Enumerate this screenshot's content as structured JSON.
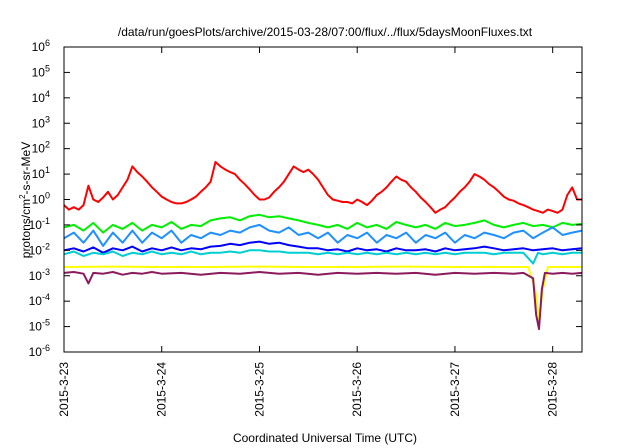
{
  "chart_data": {
    "type": "line",
    "title": "/data/run/goesPlots/archive/2015-03-28/07:00/flux/../flux/5daysMoonFluxes.txt",
    "xlabel": "Coordinated Universal Time (UTC)",
    "ylabel_main": "protons/cm",
    "ylabel_exp": "2",
    "ylabel_rest": "-s-sr-MeV",
    "yscale": "log",
    "ylim": [
      1e-06,
      1000000.0
    ],
    "xlim": [
      0,
      5.3
    ],
    "grid": false,
    "legend": "none",
    "x_tick_labels": [
      "2015-3-23",
      "2015-3-24",
      "2015-3-25",
      "2015-3-26",
      "2015-3-27",
      "2015-3-28"
    ],
    "y_tick_exponents": [
      "-6",
      "-5",
      "-4",
      "-3",
      "-2",
      "-1",
      "0",
      "1",
      "2",
      "3",
      "4",
      "5",
      "6"
    ],
    "series": [
      {
        "color": "#ff0000",
        "x": [
          0,
          0.05,
          0.1,
          0.15,
          0.2,
          0.25,
          0.3,
          0.35,
          0.4,
          0.45,
          0.5,
          0.55,
          0.6,
          0.65,
          0.7,
          0.75,
          0.8,
          0.85,
          0.9,
          0.95,
          1.0,
          1.05,
          1.1,
          1.15,
          1.2,
          1.25,
          1.3,
          1.35,
          1.4,
          1.45,
          1.5,
          1.55,
          1.6,
          1.65,
          1.7,
          1.75,
          1.8,
          1.85,
          1.9,
          1.95,
          2.0,
          2.05,
          2.1,
          2.15,
          2.2,
          2.25,
          2.3,
          2.35,
          2.4,
          2.45,
          2.5,
          2.55,
          2.6,
          2.65,
          2.7,
          2.75,
          2.8,
          2.85,
          2.9,
          2.95,
          3.0,
          3.05,
          3.1,
          3.15,
          3.2,
          3.25,
          3.3,
          3.35,
          3.4,
          3.45,
          3.5,
          3.55,
          3.6,
          3.65,
          3.7,
          3.75,
          3.8,
          3.85,
          3.9,
          3.95,
          4.0,
          4.05,
          4.1,
          4.15,
          4.2,
          4.25,
          4.3,
          4.35,
          4.4,
          4.45,
          4.5,
          4.55,
          4.6,
          4.65,
          4.7,
          4.75,
          4.8,
          4.85,
          4.9,
          4.95,
          5.0,
          5.05,
          5.1,
          5.15,
          5.2,
          5.25,
          5.3
        ],
        "y": [
          0.6,
          0.4,
          0.5,
          0.4,
          0.6,
          3.5,
          1.0,
          0.8,
          1.2,
          2.0,
          1.0,
          1.5,
          3.0,
          6.0,
          20.0,
          12.0,
          8.0,
          5.0,
          3.0,
          2.0,
          1.3,
          1.0,
          0.8,
          0.7,
          0.7,
          0.8,
          1.0,
          1.3,
          2.0,
          3.0,
          5.0,
          30.0,
          20.0,
          15.0,
          12.0,
          10.0,
          6.0,
          4.0,
          2.5,
          1.5,
          1.0,
          1.0,
          1.2,
          2.0,
          3.0,
          5.0,
          10.0,
          20.0,
          15.0,
          12.0,
          15.0,
          10.0,
          6.0,
          3.0,
          1.5,
          1.0,
          0.9,
          0.8,
          0.8,
          0.7,
          1.0,
          0.8,
          0.6,
          0.9,
          1.5,
          2.0,
          3.0,
          5.0,
          8.0,
          6.0,
          5.0,
          3.0,
          2.0,
          1.2,
          0.8,
          0.5,
          0.3,
          0.4,
          0.5,
          0.8,
          1.2,
          2.0,
          3.0,
          5.0,
          10.0,
          8.0,
          6.0,
          4.0,
          3.0,
          2.0,
          1.3,
          1.0,
          0.9,
          0.7,
          0.6,
          0.5,
          0.4,
          0.35,
          0.3,
          0.4,
          0.35,
          0.3,
          0.4,
          1.5,
          3.0,
          1.0,
          1.0
        ]
      },
      {
        "color": "#00ee00",
        "x": [
          0,
          0.1,
          0.2,
          0.3,
          0.4,
          0.5,
          0.6,
          0.7,
          0.8,
          0.9,
          1.0,
          1.1,
          1.2,
          1.3,
          1.4,
          1.5,
          1.6,
          1.7,
          1.8,
          1.9,
          2.0,
          2.1,
          2.2,
          2.3,
          2.4,
          2.5,
          2.6,
          2.7,
          2.8,
          2.9,
          3.0,
          3.1,
          3.2,
          3.3,
          3.4,
          3.5,
          3.6,
          3.7,
          3.8,
          3.9,
          4.0,
          4.1,
          4.2,
          4.3,
          4.4,
          4.5,
          4.6,
          4.7,
          4.8,
          4.9,
          5.0,
          5.1,
          5.2,
          5.3
        ],
        "y": [
          0.08,
          0.1,
          0.06,
          0.12,
          0.05,
          0.1,
          0.07,
          0.12,
          0.06,
          0.1,
          0.08,
          0.13,
          0.07,
          0.1,
          0.09,
          0.15,
          0.18,
          0.2,
          0.15,
          0.22,
          0.25,
          0.2,
          0.22,
          0.18,
          0.15,
          0.12,
          0.1,
          0.08,
          0.1,
          0.07,
          0.12,
          0.08,
          0.1,
          0.07,
          0.13,
          0.1,
          0.08,
          0.1,
          0.07,
          0.12,
          0.09,
          0.1,
          0.12,
          0.15,
          0.1,
          0.08,
          0.1,
          0.12,
          0.09,
          0.1,
          0.08,
          0.12,
          0.1,
          0.11
        ]
      },
      {
        "color": "#1e90ff",
        "x": [
          0,
          0.1,
          0.2,
          0.3,
          0.4,
          0.5,
          0.6,
          0.7,
          0.8,
          0.9,
          1.0,
          1.1,
          1.2,
          1.3,
          1.4,
          1.5,
          1.6,
          1.7,
          1.8,
          1.9,
          2.0,
          2.1,
          2.2,
          2.3,
          2.4,
          2.5,
          2.6,
          2.7,
          2.8,
          2.9,
          3.0,
          3.1,
          3.2,
          3.3,
          3.4,
          3.5,
          3.6,
          3.7,
          3.8,
          3.9,
          4.0,
          4.1,
          4.2,
          4.3,
          4.4,
          4.5,
          4.6,
          4.7,
          4.8,
          4.9,
          5.0,
          5.1,
          5.2,
          5.3
        ],
        "y": [
          0.03,
          0.05,
          0.02,
          0.06,
          0.015,
          0.05,
          0.02,
          0.06,
          0.02,
          0.05,
          0.03,
          0.06,
          0.02,
          0.04,
          0.03,
          0.05,
          0.04,
          0.06,
          0.05,
          0.08,
          0.1,
          0.06,
          0.05,
          0.08,
          0.04,
          0.05,
          0.03,
          0.05,
          0.02,
          0.04,
          0.03,
          0.05,
          0.02,
          0.04,
          0.03,
          0.05,
          0.02,
          0.04,
          0.03,
          0.05,
          0.02,
          0.04,
          0.03,
          0.05,
          0.04,
          0.03,
          0.05,
          0.06,
          0.03,
          0.05,
          0.08,
          0.04,
          0.05,
          0.06
        ]
      },
      {
        "color": "#0000ff",
        "x": [
          0,
          0.1,
          0.2,
          0.3,
          0.4,
          0.5,
          0.6,
          0.7,
          0.8,
          0.9,
          1.0,
          1.1,
          1.2,
          1.3,
          1.4,
          1.5,
          1.6,
          1.7,
          1.8,
          1.9,
          2.0,
          2.1,
          2.2,
          2.3,
          2.4,
          2.5,
          2.6,
          2.7,
          2.8,
          2.9,
          3.0,
          3.1,
          3.2,
          3.3,
          3.4,
          3.5,
          3.6,
          3.7,
          3.8,
          3.9,
          4.0,
          4.1,
          4.2,
          4.3,
          4.4,
          4.5,
          4.6,
          4.7,
          4.8,
          4.9,
          5.0,
          5.1,
          5.2,
          5.3
        ],
        "y": [
          0.01,
          0.012,
          0.009,
          0.013,
          0.008,
          0.012,
          0.01,
          0.014,
          0.009,
          0.012,
          0.01,
          0.013,
          0.01,
          0.012,
          0.011,
          0.014,
          0.015,
          0.018,
          0.016,
          0.02,
          0.022,
          0.018,
          0.02,
          0.016,
          0.014,
          0.012,
          0.012,
          0.01,
          0.011,
          0.009,
          0.012,
          0.01,
          0.011,
          0.009,
          0.012,
          0.01,
          0.01,
          0.011,
          0.009,
          0.012,
          0.01,
          0.011,
          0.012,
          0.014,
          0.012,
          0.01,
          0.011,
          0.012,
          0.01,
          0.011,
          0.012,
          0.01,
          0.011,
          0.012
        ]
      },
      {
        "color": "#00ced1",
        "x": [
          0,
          0.1,
          0.2,
          0.3,
          0.4,
          0.5,
          0.6,
          0.7,
          0.8,
          0.9,
          1.0,
          1.1,
          1.2,
          1.3,
          1.4,
          1.5,
          1.6,
          1.7,
          1.8,
          1.9,
          2.0,
          2.1,
          2.2,
          2.3,
          2.4,
          2.5,
          2.6,
          2.7,
          2.8,
          2.9,
          3.0,
          3.1,
          3.2,
          3.3,
          3.4,
          3.5,
          3.6,
          3.7,
          3.8,
          3.9,
          4.0,
          4.1,
          4.2,
          4.3,
          4.4,
          4.5,
          4.6,
          4.7,
          4.8,
          4.85,
          4.9,
          5.0,
          5.1,
          5.2,
          5.3
        ],
        "y": [
          0.007,
          0.009,
          0.006,
          0.008,
          0.007,
          0.009,
          0.006,
          0.008,
          0.007,
          0.009,
          0.007,
          0.008,
          0.007,
          0.009,
          0.007,
          0.008,
          0.008,
          0.009,
          0.008,
          0.01,
          0.01,
          0.009,
          0.009,
          0.008,
          0.008,
          0.008,
          0.007,
          0.008,
          0.007,
          0.008,
          0.007,
          0.008,
          0.007,
          0.008,
          0.007,
          0.008,
          0.007,
          0.008,
          0.007,
          0.008,
          0.007,
          0.008,
          0.008,
          0.008,
          0.007,
          0.008,
          0.008,
          0.008,
          0.003,
          0.008,
          0.007,
          0.008,
          0.007,
          0.008,
          0.008
        ]
      },
      {
        "color": "#ffff00",
        "x": [
          0,
          0.5,
          1.0,
          1.5,
          2.0,
          2.5,
          3.0,
          3.5,
          4.0,
          4.5,
          4.75,
          4.82,
          4.86,
          4.9,
          4.95,
          5.0,
          5.3
        ],
        "y": [
          0.0022,
          0.0023,
          0.0022,
          0.0022,
          0.0023,
          0.0022,
          0.0022,
          0.0023,
          0.0022,
          0.0022,
          0.0022,
          0.0003,
          2e-05,
          0.0003,
          0.0022,
          0.0022,
          0.0022
        ]
      },
      {
        "color": "#8b1a5e",
        "x": [
          0,
          0.1,
          0.2,
          0.25,
          0.3,
          0.4,
          0.5,
          0.6,
          0.7,
          0.8,
          0.9,
          1.0,
          1.2,
          1.4,
          1.6,
          1.8,
          2.0,
          2.2,
          2.4,
          2.6,
          2.8,
          3.0,
          3.2,
          3.4,
          3.6,
          3.8,
          4.0,
          4.2,
          4.4,
          4.6,
          4.7,
          4.8,
          4.83,
          4.86,
          4.89,
          4.92,
          5.0,
          5.1,
          5.2,
          5.3
        ],
        "y": [
          0.0013,
          0.0014,
          0.0012,
          0.0005,
          0.0013,
          0.0012,
          0.0014,
          0.0011,
          0.0013,
          0.0012,
          0.0014,
          0.0012,
          0.0013,
          0.0011,
          0.0013,
          0.0012,
          0.0014,
          0.0012,
          0.0013,
          0.0011,
          0.0013,
          0.0012,
          0.0013,
          0.0012,
          0.0013,
          0.0011,
          0.0013,
          0.0012,
          0.0013,
          0.0012,
          0.0013,
          0.0008,
          3e-05,
          8e-06,
          0.0003,
          0.0013,
          0.0012,
          0.0013,
          0.0012,
          0.0013
        ]
      }
    ]
  }
}
